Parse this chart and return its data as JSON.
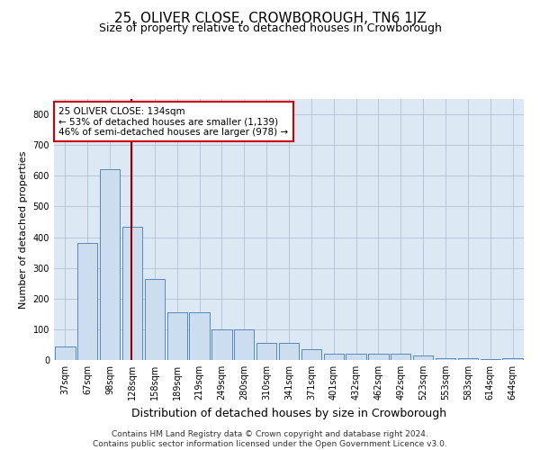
{
  "title": "25, OLIVER CLOSE, CROWBOROUGH, TN6 1JZ",
  "subtitle": "Size of property relative to detached houses in Crowborough",
  "xlabel": "Distribution of detached houses by size in Crowborough",
  "ylabel": "Number of detached properties",
  "categories": [
    "37sqm",
    "67sqm",
    "98sqm",
    "128sqm",
    "158sqm",
    "189sqm",
    "219sqm",
    "249sqm",
    "280sqm",
    "310sqm",
    "341sqm",
    "371sqm",
    "401sqm",
    "432sqm",
    "462sqm",
    "492sqm",
    "523sqm",
    "553sqm",
    "583sqm",
    "614sqm",
    "644sqm"
  ],
  "values": [
    45,
    380,
    622,
    435,
    265,
    155,
    155,
    100,
    100,
    55,
    55,
    35,
    20,
    20,
    20,
    20,
    15,
    5,
    5,
    2,
    5
  ],
  "bar_color": "#ccddf0",
  "bar_edge_color": "#5588bb",
  "vline_color": "#990000",
  "vline_x_index": 2.95,
  "annotation_text": "25 OLIVER CLOSE: 134sqm\n← 53% of detached houses are smaller (1,139)\n46% of semi-detached houses are larger (978) →",
  "annotation_box_facecolor": "#ffffff",
  "annotation_box_edgecolor": "#cc0000",
  "ylim": [
    0,
    850
  ],
  "yticks": [
    0,
    100,
    200,
    300,
    400,
    500,
    600,
    700,
    800
  ],
  "background_color": "#dde8f5",
  "grid_color": "#b0b8cc",
  "footer_text": "Contains HM Land Registry data © Crown copyright and database right 2024.\nContains public sector information licensed under the Open Government Licence v3.0.",
  "title_fontsize": 11,
  "subtitle_fontsize": 9,
  "xlabel_fontsize": 9,
  "ylabel_fontsize": 8,
  "tick_fontsize": 7,
  "annotation_fontsize": 7.5,
  "footer_fontsize": 6.5
}
